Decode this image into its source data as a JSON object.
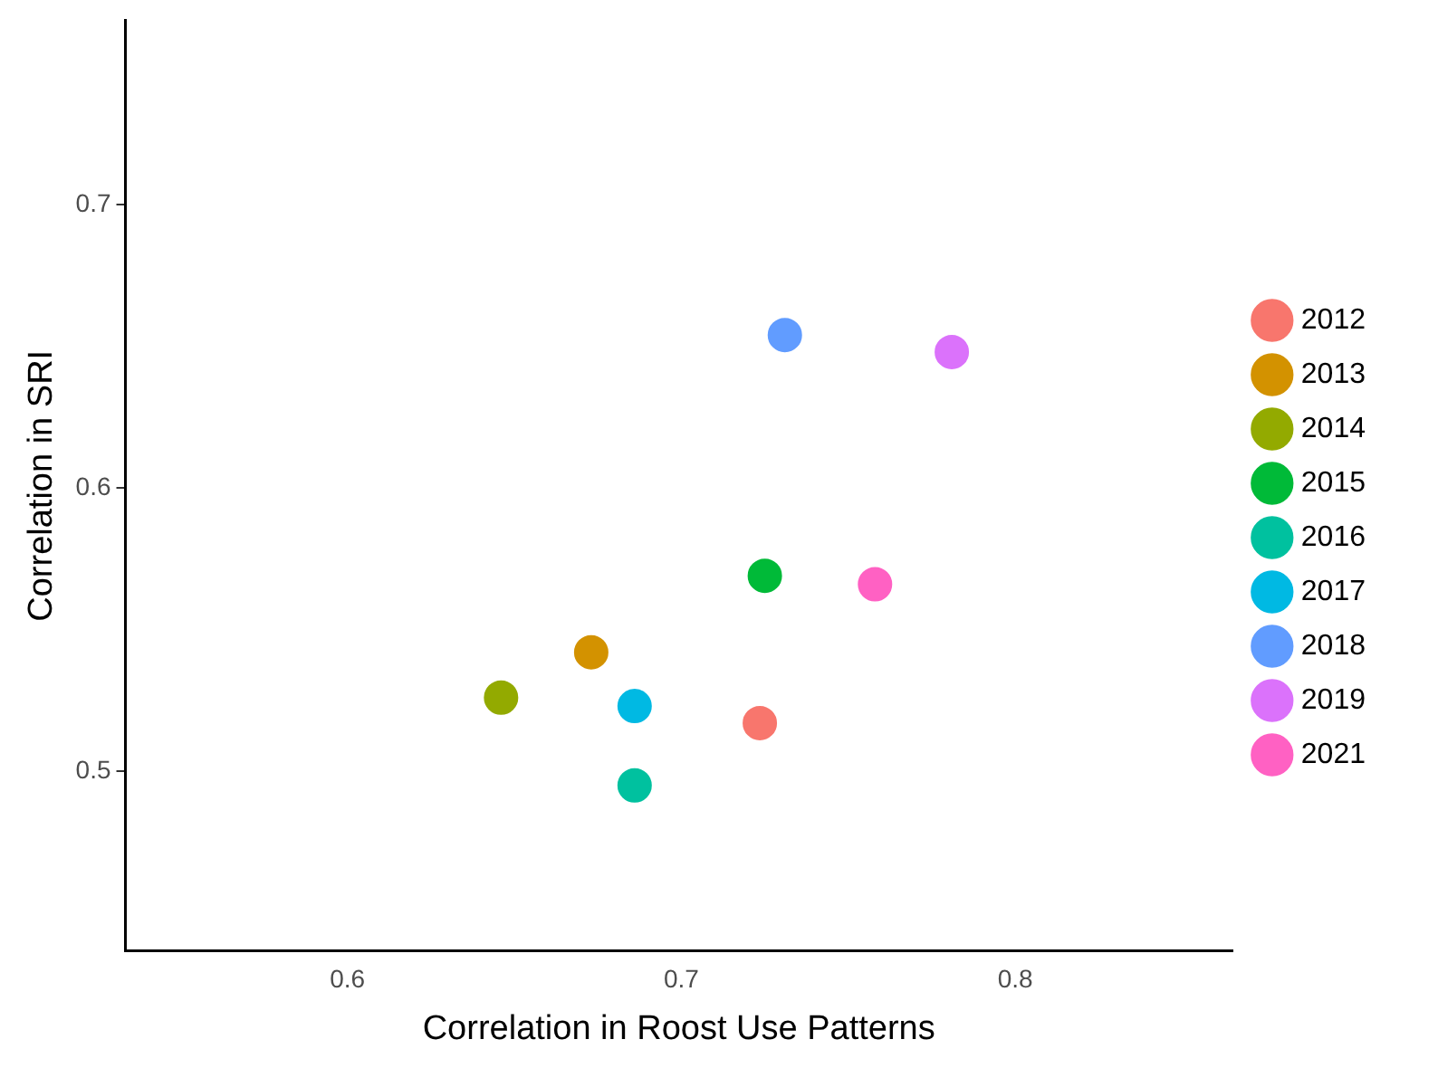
{
  "chart_data": {
    "type": "scatter",
    "xlabel": "Correlation in Roost Use Patterns",
    "ylabel": "Correlation in SRI",
    "xlim": [
      0.5335,
      0.865
    ],
    "xticks": [
      {
        "value": 0.6,
        "label": "0.6"
      },
      {
        "value": 0.7,
        "label": "0.7"
      },
      {
        "value": 0.8,
        "label": "0.8"
      }
    ],
    "ylim": [
      0.4365,
      0.765
    ],
    "yticks": [
      {
        "value": 0.5,
        "label": "0.5"
      },
      {
        "value": 0.6,
        "label": "0.6"
      },
      {
        "value": 0.7,
        "label": "0.7"
      }
    ],
    "grid": false,
    "legend": "right",
    "marker": "circle",
    "series": [
      {
        "name": "2012",
        "color": "#f8766d",
        "x": [
          0.7235
        ],
        "values": [
          0.517
        ]
      },
      {
        "name": "2013",
        "color": "#d39200",
        "x": [
          0.673
        ],
        "values": [
          0.542
        ]
      },
      {
        "name": "2014",
        "color": "#93aa00",
        "x": [
          0.646
        ],
        "values": [
          0.526
        ]
      },
      {
        "name": "2015",
        "color": "#00ba38",
        "x": [
          0.725
        ],
        "values": [
          0.569
        ]
      },
      {
        "name": "2016",
        "color": "#00c19f",
        "x": [
          0.686
        ],
        "values": [
          0.495
        ]
      },
      {
        "name": "2017",
        "color": "#00b9e3",
        "x": [
          0.686
        ],
        "values": [
          0.523
        ]
      },
      {
        "name": "2018",
        "color": "#619cff",
        "x": [
          0.731
        ],
        "values": [
          0.654
        ]
      },
      {
        "name": "2019",
        "color": "#db72fb",
        "x": [
          0.781
        ],
        "values": [
          0.648
        ]
      },
      {
        "name": "2021",
        "color": "#ff61c3",
        "x": [
          0.758
        ],
        "values": [
          0.566
        ]
      }
    ]
  }
}
